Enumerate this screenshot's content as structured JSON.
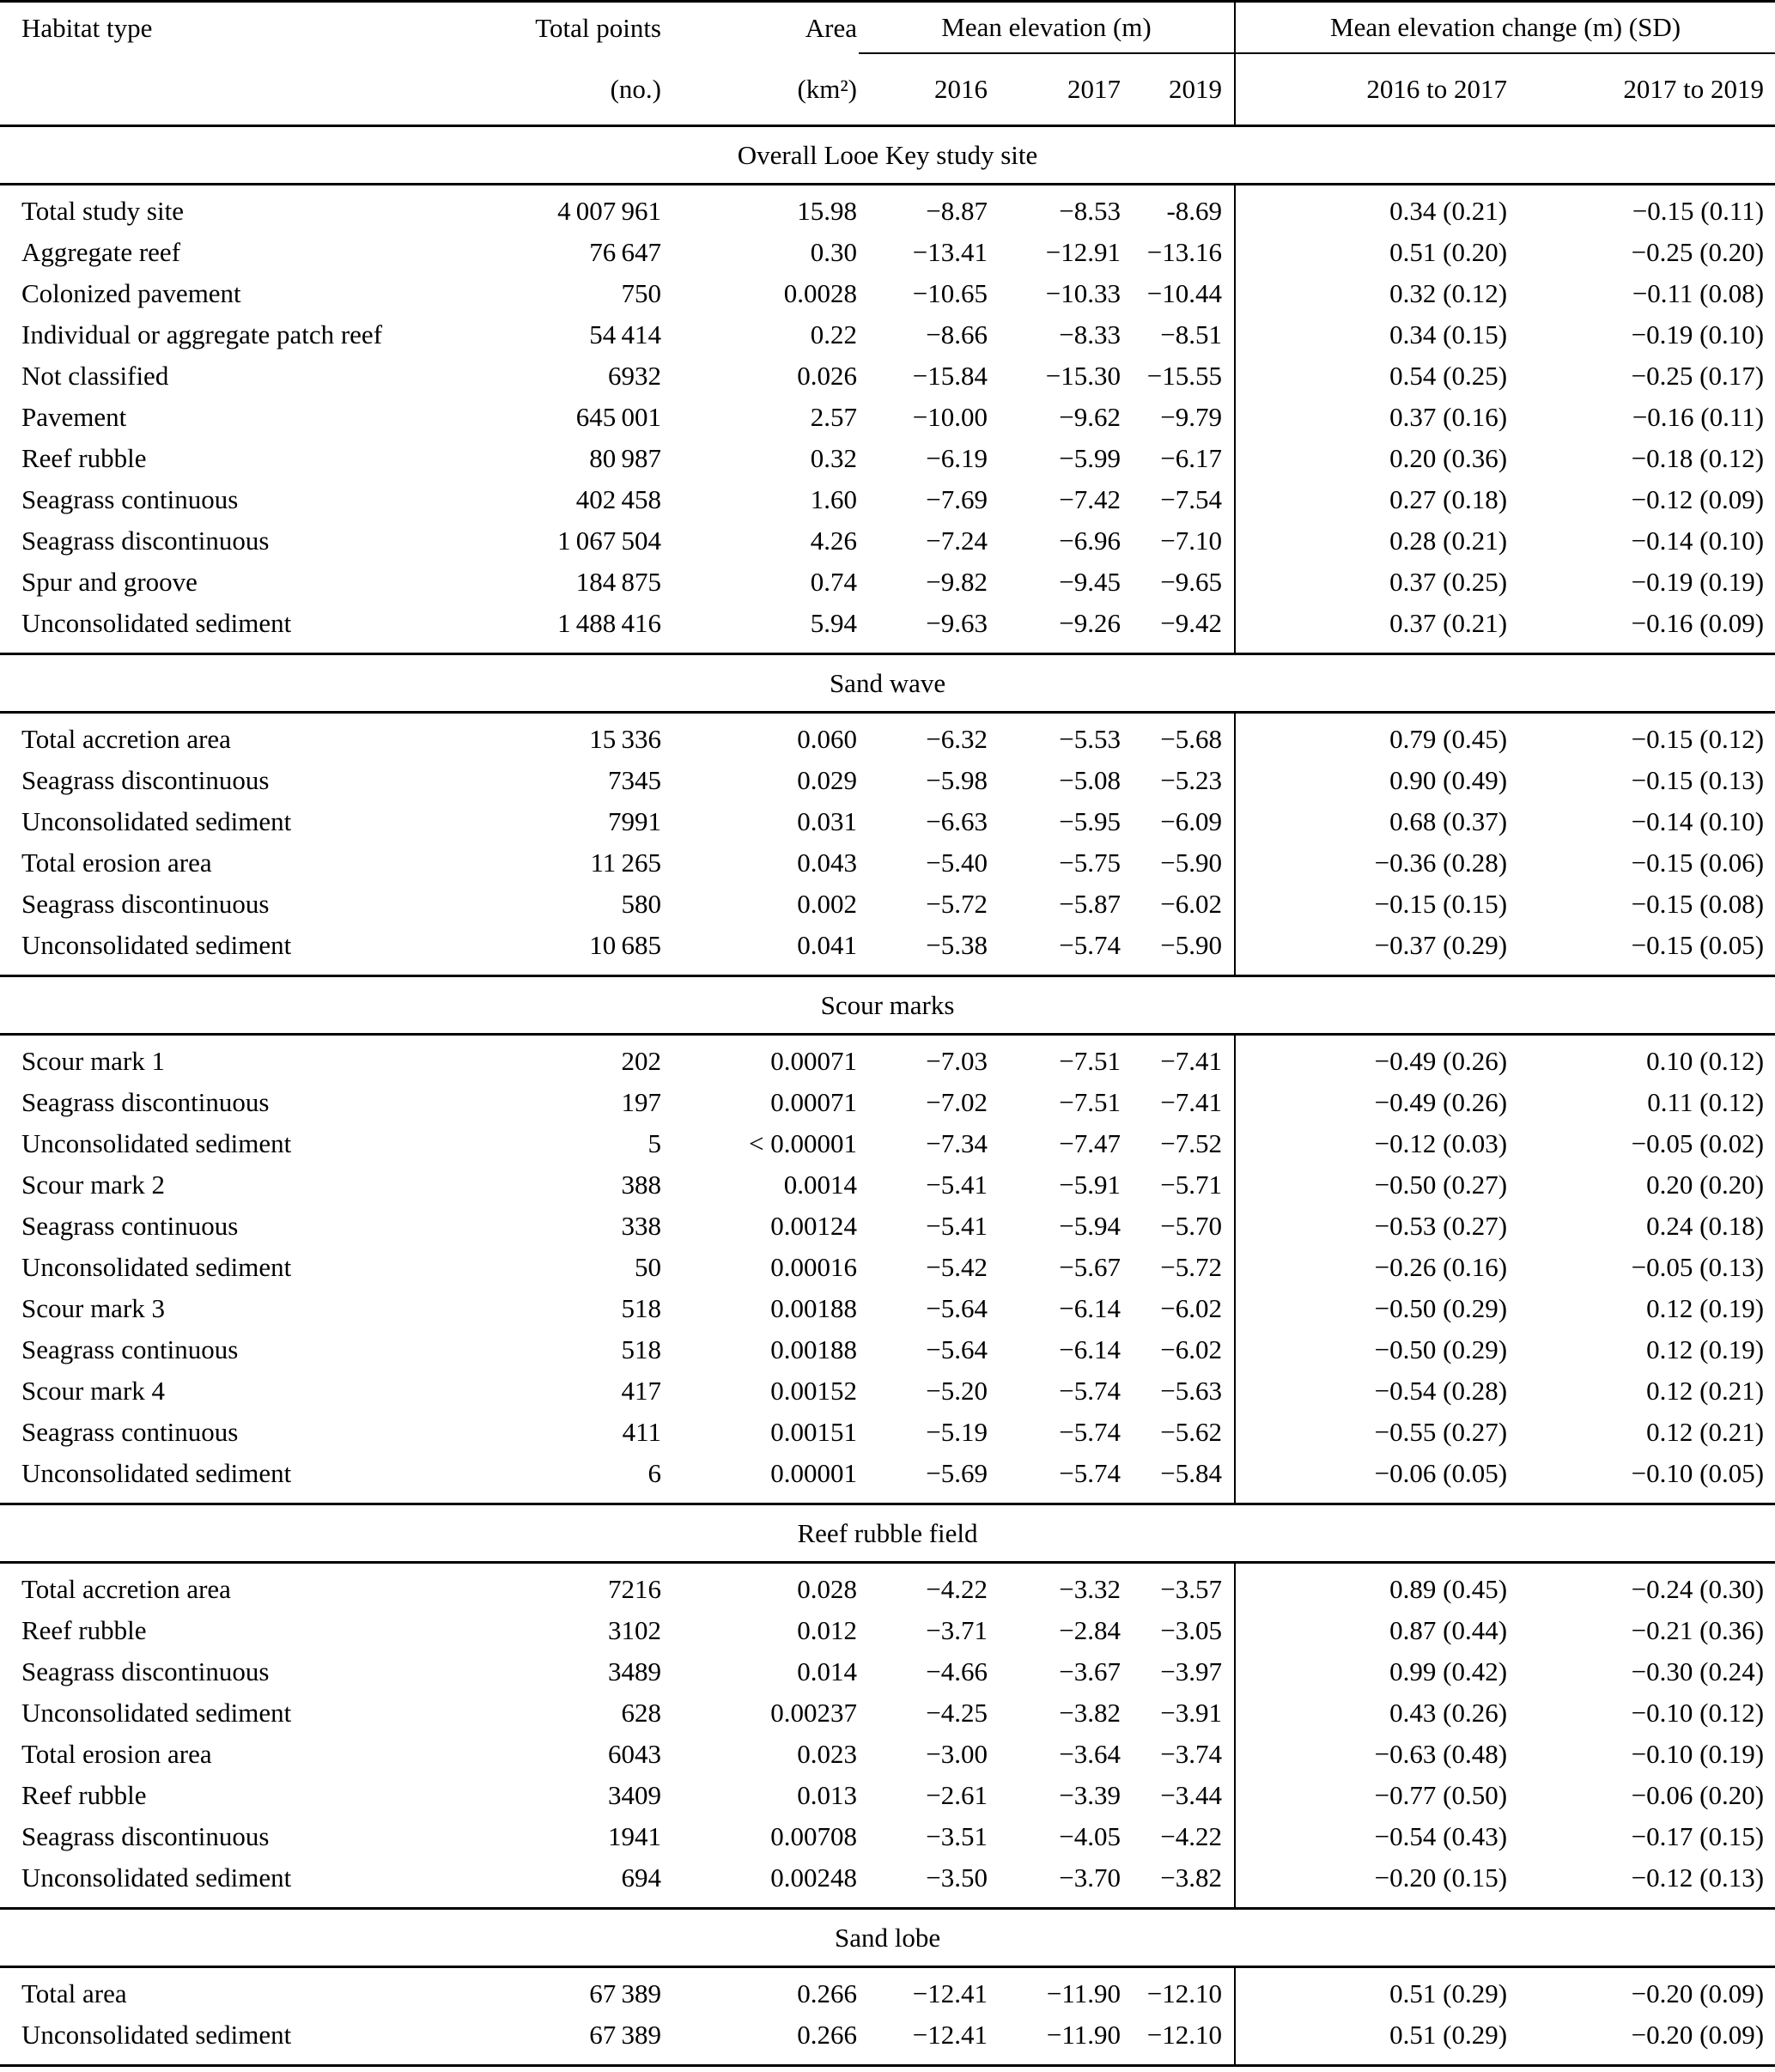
{
  "colors": {
    "text": "#000000",
    "background": "#ffffff",
    "rule": "#000000"
  },
  "table": {
    "header": {
      "col_habitat": "Habitat type",
      "col_points": "Total points",
      "col_points_unit": "(no.)",
      "col_area": "Area",
      "col_area_unit": "(km²)",
      "group_elevation": "Mean elevation (m)",
      "group_change": "Mean elevation change (m) (SD)",
      "years": [
        "2016",
        "2017",
        "2019"
      ],
      "change_periods": [
        "2016 to 2017",
        "2017 to 2019"
      ]
    },
    "sections": [
      {
        "title": "Overall Looe Key study site",
        "rows": [
          {
            "habitat": "Total study site",
            "points": "4 007 961",
            "area": "15.98",
            "e2016": "−8.87",
            "e2017": "−8.53",
            "e2019": "-8.69",
            "c1617": "0.34 (0.21)",
            "c1719": "−0.15 (0.11)"
          },
          {
            "habitat": "Aggregate reef",
            "points": "76 647",
            "area": "0.30",
            "e2016": "−13.41",
            "e2017": "−12.91",
            "e2019": "−13.16",
            "c1617": "0.51 (0.20)",
            "c1719": "−0.25 (0.20)"
          },
          {
            "habitat": "Colonized pavement",
            "points": "750",
            "area": "0.0028",
            "e2016": "−10.65",
            "e2017": "−10.33",
            "e2019": "−10.44",
            "c1617": "0.32 (0.12)",
            "c1719": "−0.11 (0.08)"
          },
          {
            "habitat": "Individual or aggregate patch reef",
            "points": "54 414",
            "area": "0.22",
            "e2016": "−8.66",
            "e2017": "−8.33",
            "e2019": "−8.51",
            "c1617": "0.34 (0.15)",
            "c1719": "−0.19 (0.10)"
          },
          {
            "habitat": "Not classified",
            "points": "6932",
            "area": "0.026",
            "e2016": "−15.84",
            "e2017": "−15.30",
            "e2019": "−15.55",
            "c1617": "0.54 (0.25)",
            "c1719": "−0.25 (0.17)"
          },
          {
            "habitat": "Pavement",
            "points": "645 001",
            "area": "2.57",
            "e2016": "−10.00",
            "e2017": "−9.62",
            "e2019": "−9.79",
            "c1617": "0.37 (0.16)",
            "c1719": "−0.16 (0.11)"
          },
          {
            "habitat": "Reef rubble",
            "points": "80 987",
            "area": "0.32",
            "e2016": "−6.19",
            "e2017": "−5.99",
            "e2019": "−6.17",
            "c1617": "0.20 (0.36)",
            "c1719": "−0.18 (0.12)"
          },
          {
            "habitat": "Seagrass continuous",
            "points": "402 458",
            "area": "1.60",
            "e2016": "−7.69",
            "e2017": "−7.42",
            "e2019": "−7.54",
            "c1617": "0.27 (0.18)",
            "c1719": "−0.12 (0.09)"
          },
          {
            "habitat": "Seagrass discontinuous",
            "points": "1 067 504",
            "area": "4.26",
            "e2016": "−7.24",
            "e2017": "−6.96",
            "e2019": "−7.10",
            "c1617": "0.28 (0.21)",
            "c1719": "−0.14 (0.10)"
          },
          {
            "habitat": "Spur and groove",
            "points": "184 875",
            "area": "0.74",
            "e2016": "−9.82",
            "e2017": "−9.45",
            "e2019": "−9.65",
            "c1617": "0.37 (0.25)",
            "c1719": "−0.19 (0.19)"
          },
          {
            "habitat": "Unconsolidated sediment",
            "points": "1 488 416",
            "area": "5.94",
            "e2016": "−9.63",
            "e2017": "−9.26",
            "e2019": "−9.42",
            "c1617": "0.37 (0.21)",
            "c1719": "−0.16 (0.09)"
          }
        ]
      },
      {
        "title": "Sand wave",
        "rows": [
          {
            "habitat": "Total accretion area",
            "points": "15 336",
            "area": "0.060",
            "e2016": "−6.32",
            "e2017": "−5.53",
            "e2019": "−5.68",
            "c1617": "0.79 (0.45)",
            "c1719": "−0.15 (0.12)"
          },
          {
            "habitat": "Seagrass discontinuous",
            "points": "7345",
            "area": "0.029",
            "e2016": "−5.98",
            "e2017": "−5.08",
            "e2019": "−5.23",
            "c1617": "0.90 (0.49)",
            "c1719": "−0.15 (0.13)"
          },
          {
            "habitat": "Unconsolidated sediment",
            "points": "7991",
            "area": "0.031",
            "e2016": "−6.63",
            "e2017": "−5.95",
            "e2019": "−6.09",
            "c1617": "0.68 (0.37)",
            "c1719": "−0.14 (0.10)"
          },
          {
            "habitat": "Total erosion area",
            "points": "11 265",
            "area": "0.043",
            "e2016": "−5.40",
            "e2017": "−5.75",
            "e2019": "−5.90",
            "c1617": "−0.36 (0.28)",
            "c1719": "−0.15 (0.06)"
          },
          {
            "habitat": "Seagrass discontinuous",
            "points": "580",
            "area": "0.002",
            "e2016": "−5.72",
            "e2017": "−5.87",
            "e2019": "−6.02",
            "c1617": "−0.15 (0.15)",
            "c1719": "−0.15 (0.08)"
          },
          {
            "habitat": "Unconsolidated sediment",
            "points": "10 685",
            "area": "0.041",
            "e2016": "−5.38",
            "e2017": "−5.74",
            "e2019": "−5.90",
            "c1617": "−0.37 (0.29)",
            "c1719": "−0.15 (0.05)"
          }
        ]
      },
      {
        "title": "Scour marks",
        "rows": [
          {
            "habitat": "Scour mark 1",
            "points": "202",
            "area": "0.00071",
            "e2016": "−7.03",
            "e2017": "−7.51",
            "e2019": "−7.41",
            "c1617": "−0.49 (0.26)",
            "c1719": "0.10 (0.12)"
          },
          {
            "habitat": "Seagrass discontinuous",
            "points": "197",
            "area": "0.00071",
            "e2016": "−7.02",
            "e2017": "−7.51",
            "e2019": "−7.41",
            "c1617": "−0.49 (0.26)",
            "c1719": "0.11 (0.12)"
          },
          {
            "habitat": "Unconsolidated sediment",
            "points": "5",
            "area": "< 0.00001",
            "e2016": "−7.34",
            "e2017": "−7.47",
            "e2019": "−7.52",
            "c1617": "−0.12 (0.03)",
            "c1719": "−0.05 (0.02)"
          },
          {
            "habitat": "Scour mark 2",
            "points": "388",
            "area": "0.0014",
            "e2016": "−5.41",
            "e2017": "−5.91",
            "e2019": "−5.71",
            "c1617": "−0.50 (0.27)",
            "c1719": "0.20 (0.20)"
          },
          {
            "habitat": "Seagrass continuous",
            "points": "338",
            "area": "0.00124",
            "e2016": "−5.41",
            "e2017": "−5.94",
            "e2019": "−5.70",
            "c1617": "−0.53 (0.27)",
            "c1719": "0.24 (0.18)"
          },
          {
            "habitat": "Unconsolidated sediment",
            "points": "50",
            "area": "0.00016",
            "e2016": "−5.42",
            "e2017": "−5.67",
            "e2019": "−5.72",
            "c1617": "−0.26 (0.16)",
            "c1719": "−0.05 (0.13)"
          },
          {
            "habitat": "Scour mark 3",
            "points": "518",
            "area": "0.00188",
            "e2016": "−5.64",
            "e2017": "−6.14",
            "e2019": "−6.02",
            "c1617": "−0.50 (0.29)",
            "c1719": "0.12 (0.19)"
          },
          {
            "habitat": "Seagrass continuous",
            "points": "518",
            "area": "0.00188",
            "e2016": "−5.64",
            "e2017": "−6.14",
            "e2019": "−6.02",
            "c1617": "−0.50 (0.29)",
            "c1719": "0.12 (0.19)"
          },
          {
            "habitat": "Scour mark 4",
            "points": "417",
            "area": "0.00152",
            "e2016": "−5.20",
            "e2017": "−5.74",
            "e2019": "−5.63",
            "c1617": "−0.54 (0.28)",
            "c1719": "0.12 (0.21)"
          },
          {
            "habitat": "Seagrass continuous",
            "points": "411",
            "area": "0.00151",
            "e2016": "−5.19",
            "e2017": "−5.74",
            "e2019": "−5.62",
            "c1617": "−0.55 (0.27)",
            "c1719": "0.12 (0.21)"
          },
          {
            "habitat": "Unconsolidated sediment",
            "points": "6",
            "area": "0.00001",
            "e2016": "−5.69",
            "e2017": "−5.74",
            "e2019": "−5.84",
            "c1617": "−0.06 (0.05)",
            "c1719": "−0.10 (0.05)"
          }
        ]
      },
      {
        "title": "Reef rubble field",
        "rows": [
          {
            "habitat": "Total accretion area",
            "points": "7216",
            "area": "0.028",
            "e2016": "−4.22",
            "e2017": "−3.32",
            "e2019": "−3.57",
            "c1617": "0.89 (0.45)",
            "c1719": "−0.24 (0.30)"
          },
          {
            "habitat": "Reef rubble",
            "points": "3102",
            "area": "0.012",
            "e2016": "−3.71",
            "e2017": "−2.84",
            "e2019": "−3.05",
            "c1617": "0.87 (0.44)",
            "c1719": "−0.21 (0.36)"
          },
          {
            "habitat": "Seagrass discontinuous",
            "points": "3489",
            "area": "0.014",
            "e2016": "−4.66",
            "e2017": "−3.67",
            "e2019": "−3.97",
            "c1617": "0.99 (0.42)",
            "c1719": "−0.30 (0.24)"
          },
          {
            "habitat": "Unconsolidated sediment",
            "points": "628",
            "area": "0.00237",
            "e2016": "−4.25",
            "e2017": "−3.82",
            "e2019": "−3.91",
            "c1617": "0.43 (0.26)",
            "c1719": "−0.10 (0.12)"
          },
          {
            "habitat": "Total erosion area",
            "points": "6043",
            "area": "0.023",
            "e2016": "−3.00",
            "e2017": "−3.64",
            "e2019": "−3.74",
            "c1617": "−0.63 (0.48)",
            "c1719": "−0.10 (0.19)"
          },
          {
            "habitat": "Reef rubble",
            "points": "3409",
            "area": "0.013",
            "e2016": "−2.61",
            "e2017": "−3.39",
            "e2019": "−3.44",
            "c1617": "−0.77 (0.50)",
            "c1719": "−0.06 (0.20)"
          },
          {
            "habitat": "Seagrass discontinuous",
            "points": "1941",
            "area": "0.00708",
            "e2016": "−3.51",
            "e2017": "−4.05",
            "e2019": "−4.22",
            "c1617": "−0.54 (0.43)",
            "c1719": "−0.17 (0.15)"
          },
          {
            "habitat": "Unconsolidated sediment",
            "points": "694",
            "area": "0.00248",
            "e2016": "−3.50",
            "e2017": "−3.70",
            "e2019": "−3.82",
            "c1617": "−0.20 (0.15)",
            "c1719": "−0.12 (0.13)"
          }
        ]
      },
      {
        "title": "Sand lobe",
        "rows": [
          {
            "habitat": "Total area",
            "points": "67 389",
            "area": "0.266",
            "e2016": "−12.41",
            "e2017": "−11.90",
            "e2019": "−12.10",
            "c1617": "0.51 (0.29)",
            "c1719": "−0.20 (0.09)"
          },
          {
            "habitat": "Unconsolidated sediment",
            "points": "67 389",
            "area": "0.266",
            "e2016": "−12.41",
            "e2017": "−11.90",
            "e2019": "−12.10",
            "c1617": "0.51 (0.29)",
            "c1719": "−0.20 (0.09)"
          }
        ]
      }
    ]
  }
}
